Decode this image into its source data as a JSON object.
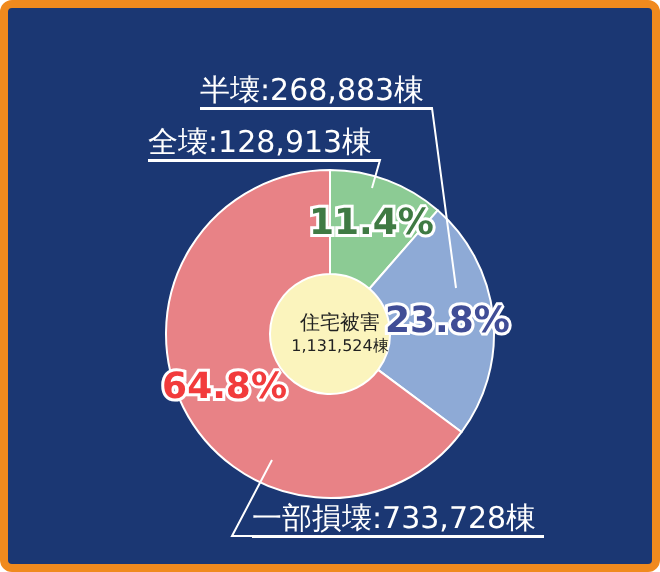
{
  "chart_data": {
    "type": "donut",
    "title": "住宅被害",
    "subtitle": "1,131,524棟",
    "categories": [
      "全壊:128,913棟",
      "半壊:268,883棟",
      "一部損壊:733,728棟"
    ],
    "values": [
      11.4,
      23.8,
      64.8
    ],
    "colors": [
      "#8ccb94",
      "#8eaad6",
      "#e88286"
    ],
    "value_labels": [
      "11.4%",
      "23.8%",
      "64.8%"
    ],
    "legend": false
  }
}
